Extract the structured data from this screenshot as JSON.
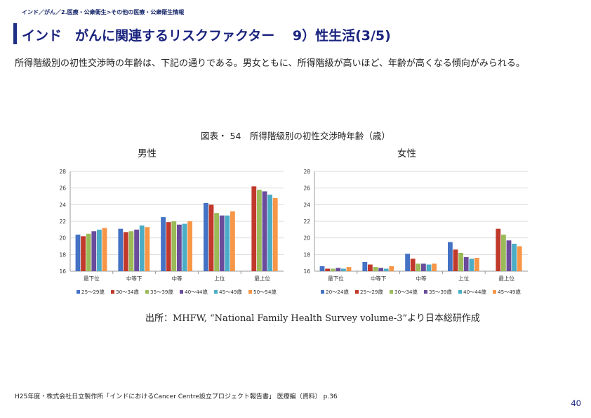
{
  "breadcrumb": "インド／がん／2.医療・公衆衛生>その他の医療・公衆衛生情報",
  "title": "インド　がんに関連するリスクファクター　 9）性生活(3/5)",
  "lead": "所得階級別の初性交渉時の年齢は、下記の通りである。男女ともに、所得階級が高いほど、年齢が高くなる傾向がみられる。",
  "figure_title": "図表・ 54　所得階級別の初性交渉時年齢（歳）",
  "source": "出所：MHFW, “National Family Health Survey volume-3”より日本総研作成",
  "footer": "H25年度・株式会社日立製作所「インドにおけるCancer Centre設立プロジェクト報告書」 医療編（資料） p.36",
  "page_number": "40",
  "chart_data": [
    {
      "type": "bar",
      "title": "男性",
      "categories": [
        "最下位",
        "中等下",
        "中等",
        "上位",
        "最上位"
      ],
      "ylim": [
        16,
        28
      ],
      "yticks": [
        16,
        18,
        20,
        22,
        24,
        26,
        28
      ],
      "grid": true,
      "legend": "bottom",
      "series": [
        {
          "name": "25～29歳",
          "color": "#4472c4",
          "values": [
            20.4,
            21.1,
            22.5,
            24.2,
            16.0
          ]
        },
        {
          "name": "30～34歳",
          "color": "#c0392b",
          "values": [
            20.2,
            20.7,
            21.9,
            24.0,
            26.2
          ]
        },
        {
          "name": "35～39歳",
          "color": "#9bbb59",
          "values": [
            20.5,
            20.8,
            22.0,
            23.0,
            25.8
          ]
        },
        {
          "name": "40～44歳",
          "color": "#6a4c9c",
          "values": [
            20.8,
            21.0,
            21.6,
            22.7,
            25.6
          ]
        },
        {
          "name": "45～49歳",
          "color": "#4bacc6",
          "values": [
            21.0,
            21.5,
            21.7,
            22.7,
            25.2
          ]
        },
        {
          "name": "50～54歳",
          "color": "#f79646",
          "values": [
            21.2,
            21.3,
            22.0,
            23.2,
            24.8
          ]
        }
      ]
    },
    {
      "type": "bar",
      "title": "女性",
      "categories": [
        "最下位",
        "中等下",
        "中等",
        "上位",
        "最上位"
      ],
      "ylim": [
        16,
        28
      ],
      "yticks": [
        16,
        18,
        20,
        22,
        24,
        26,
        28
      ],
      "grid": true,
      "legend": "bottom",
      "series": [
        {
          "name": "20～24歳",
          "color": "#4472c4",
          "values": [
            16.6,
            17.1,
            18.1,
            19.5,
            16.0
          ]
        },
        {
          "name": "25～29歳",
          "color": "#c0392b",
          "values": [
            16.3,
            16.8,
            17.5,
            18.6,
            21.1
          ]
        },
        {
          "name": "30～34歳",
          "color": "#9bbb59",
          "values": [
            16.3,
            16.5,
            16.9,
            18.2,
            20.4
          ]
        },
        {
          "name": "35～39歳",
          "color": "#6a4c9c",
          "values": [
            16.4,
            16.4,
            16.9,
            17.7,
            19.7
          ]
        },
        {
          "name": "40～44歳",
          "color": "#4bacc6",
          "values": [
            16.3,
            16.3,
            16.8,
            17.5,
            19.3
          ]
        },
        {
          "name": "45～49歳",
          "color": "#f79646",
          "values": [
            16.5,
            16.6,
            16.9,
            17.6,
            19.0
          ]
        }
      ]
    }
  ]
}
